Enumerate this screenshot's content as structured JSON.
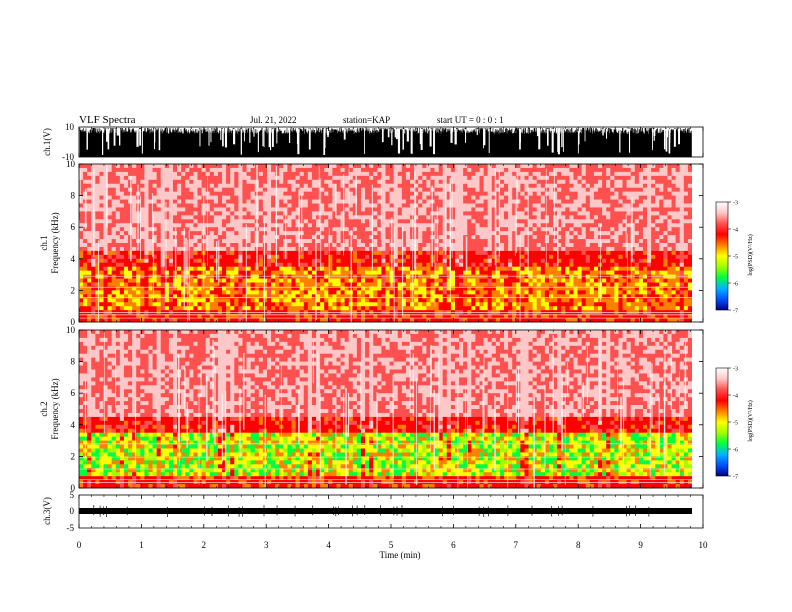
{
  "header": {
    "title": "VLF Spectra",
    "date": "Jul. 21, 2022",
    "station": "station=KAP",
    "start": "start UT = 0 : 0 : 1"
  },
  "chart_data": [
    {
      "type": "line",
      "name": "ch1-waveform",
      "ylabel": "ch.1(V)",
      "ylim": [
        -10,
        10
      ],
      "yticks": [
        "10",
        "-10"
      ],
      "xlim": [
        0,
        10
      ]
    },
    {
      "type": "heatmap",
      "name": "ch1-spectrogram",
      "ylabel": "Frequency (kHz)",
      "channel_label": "ch.1",
      "ylim": [
        0,
        10
      ],
      "yticks": [
        "0",
        "2",
        "4",
        "6",
        "8",
        "10"
      ],
      "xlim": [
        0,
        10
      ],
      "colorbar": {
        "label": "log(PSD)(V²/Hz)",
        "ticks": [
          "-3",
          "-4",
          "-5",
          "-6",
          "-7"
        ],
        "range": [
          -7,
          -3
        ]
      },
      "colors": [
        "#000080",
        "#0050ff",
        "#00b4ff",
        "#00ff40",
        "#a0ff00",
        "#ffff00",
        "#ff8000",
        "#ff0000",
        "#ff5050",
        "#ffc8c8",
        "#ffffff"
      ]
    },
    {
      "type": "heatmap",
      "name": "ch2-spectrogram",
      "ylabel": "Frequency (kHz)",
      "channel_label": "ch.2",
      "ylim": [
        0,
        10
      ],
      "yticks": [
        "0",
        "2",
        "4",
        "6",
        "8",
        "10"
      ],
      "xlim": [
        0,
        10
      ],
      "colorbar": {
        "label": "log(PSD)(V²/Hz)",
        "ticks": [
          "-3",
          "-4",
          "-5",
          "-6",
          "-7"
        ],
        "range": [
          -7,
          -3
        ]
      },
      "colors": [
        "#000080",
        "#0050ff",
        "#00b4ff",
        "#00ff40",
        "#a0ff00",
        "#ffff00",
        "#ff8000",
        "#ff0000",
        "#ff5050",
        "#ffc8c8",
        "#ffffff"
      ]
    },
    {
      "type": "line",
      "name": "ch3-waveform",
      "ylabel": "ch.3(V)",
      "ylim": [
        -5,
        5
      ],
      "yticks": [
        "5",
        "0",
        "-5"
      ],
      "xlim": [
        0,
        10
      ]
    }
  ],
  "xaxis": {
    "label": "Time (min)",
    "ticks": [
      "0",
      "1",
      "2",
      "3",
      "4",
      "5",
      "6",
      "7",
      "8",
      "9",
      "10"
    ],
    "range": [
      0,
      10
    ]
  }
}
